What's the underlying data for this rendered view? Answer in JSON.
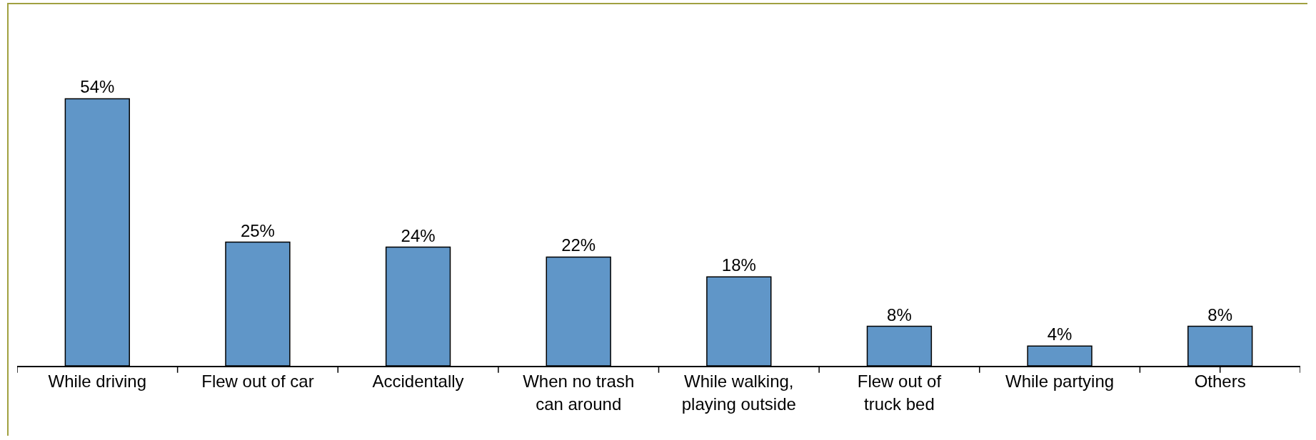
{
  "chart_data": {
    "type": "bar",
    "categories": [
      "While driving",
      "Flew out of car",
      "Accidentally",
      "When no trash can around",
      "While walking, playing outside",
      "Flew out of truck bed",
      "While partying",
      "Others"
    ],
    "values": [
      54,
      25,
      24,
      22,
      18,
      8,
      4,
      8
    ],
    "value_labels": [
      "54%",
      "25%",
      "24%",
      "22%",
      "18%",
      "8%",
      "4%",
      "8%"
    ],
    "color": "#6096c8"
  }
}
